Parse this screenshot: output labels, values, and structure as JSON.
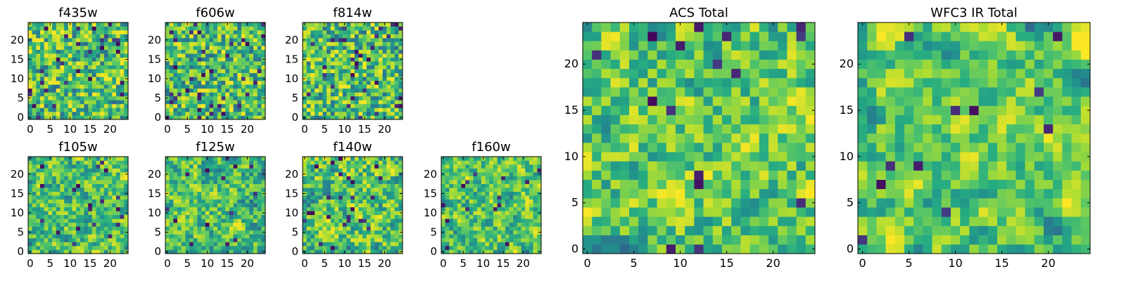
{
  "chart_data": [
    {
      "type": "heatmap",
      "title": "f435w",
      "x_ticks": [
        "0",
        "5",
        "10",
        "15",
        "20"
      ],
      "y_ticks": [
        "0",
        "5",
        "10",
        "15",
        "20"
      ],
      "xlim": [
        0,
        25
      ],
      "ylim": [
        0,
        25
      ],
      "grid_size": 25,
      "colormap": "viridis",
      "seed": 11,
      "smooth": 0,
      "dark_fraction": 0.05
    },
    {
      "type": "heatmap",
      "title": "f606w",
      "x_ticks": [
        "0",
        "5",
        "10",
        "15",
        "20"
      ],
      "y_ticks": [
        "0",
        "5",
        "10",
        "15",
        "20"
      ],
      "xlim": [
        0,
        25
      ],
      "ylim": [
        0,
        25
      ],
      "grid_size": 25,
      "colormap": "viridis",
      "seed": 23,
      "smooth": 0,
      "dark_fraction": 0.05
    },
    {
      "type": "heatmap",
      "title": "f814w",
      "x_ticks": [
        "0",
        "5",
        "10",
        "15",
        "20"
      ],
      "y_ticks": [
        "0",
        "5",
        "10",
        "15",
        "20"
      ],
      "xlim": [
        0,
        25
      ],
      "ylim": [
        0,
        25
      ],
      "grid_size": 25,
      "colormap": "viridis",
      "seed": 37,
      "smooth": 0,
      "dark_fraction": 0.05
    },
    {
      "type": "heatmap",
      "title": "f105w",
      "x_ticks": [
        "0",
        "5",
        "10",
        "15",
        "20"
      ],
      "y_ticks": [
        "0",
        "5",
        "10",
        "15",
        "20"
      ],
      "xlim": [
        0,
        25
      ],
      "ylim": [
        0,
        25
      ],
      "grid_size": 25,
      "colormap": "viridis",
      "seed": 41,
      "smooth": 1,
      "dark_fraction": 0.03
    },
    {
      "type": "heatmap",
      "title": "f125w",
      "x_ticks": [
        "0",
        "5",
        "10",
        "15",
        "20"
      ],
      "y_ticks": [
        "0",
        "5",
        "10",
        "15",
        "20"
      ],
      "xlim": [
        0,
        25
      ],
      "ylim": [
        0,
        25
      ],
      "grid_size": 25,
      "colormap": "viridis",
      "seed": 53,
      "smooth": 1,
      "dark_fraction": 0.03
    },
    {
      "type": "heatmap",
      "title": "f140w",
      "x_ticks": [
        "0",
        "5",
        "10",
        "15",
        "20"
      ],
      "y_ticks": [
        "0",
        "5",
        "10",
        "15",
        "20"
      ],
      "xlim": [
        0,
        25
      ],
      "ylim": [
        0,
        25
      ],
      "grid_size": 25,
      "colormap": "viridis",
      "seed": 67,
      "smooth": 1,
      "dark_fraction": 0.03
    },
    {
      "type": "heatmap",
      "title": "f160w",
      "x_ticks": [
        "0",
        "5",
        "10",
        "15",
        "20"
      ],
      "y_ticks": [
        "0",
        "5",
        "10",
        "15",
        "20"
      ],
      "xlim": [
        0,
        25
      ],
      "ylim": [
        0,
        25
      ],
      "grid_size": 25,
      "colormap": "viridis",
      "seed": 79,
      "smooth": 1,
      "dark_fraction": 0.03
    },
    {
      "type": "heatmap",
      "title": "ACS Total",
      "x_ticks": [
        "0",
        "5",
        "10",
        "15",
        "20"
      ],
      "y_ticks": [
        "0",
        "5",
        "10",
        "15",
        "20"
      ],
      "xlim": [
        0,
        25
      ],
      "ylim": [
        0,
        25
      ],
      "grid_size": 25,
      "colormap": "viridis",
      "seed": 97,
      "smooth": 1,
      "dark_fraction": 0.03
    },
    {
      "type": "heatmap",
      "title": "WFC3 IR Total",
      "x_ticks": [
        "0",
        "5",
        "10",
        "15",
        "20"
      ],
      "y_ticks": [
        "0",
        "5",
        "10",
        "15",
        "20"
      ],
      "xlim": [
        0,
        25
      ],
      "ylim": [
        0,
        25
      ],
      "grid_size": 25,
      "colormap": "viridis",
      "seed": 113,
      "smooth": 2,
      "dark_fraction": 0.02
    }
  ],
  "colors": {
    "viridis_dark": "#440154",
    "viridis_mid": "#21908c",
    "viridis_green": "#5ec962",
    "viridis_yellow": "#fde725"
  }
}
